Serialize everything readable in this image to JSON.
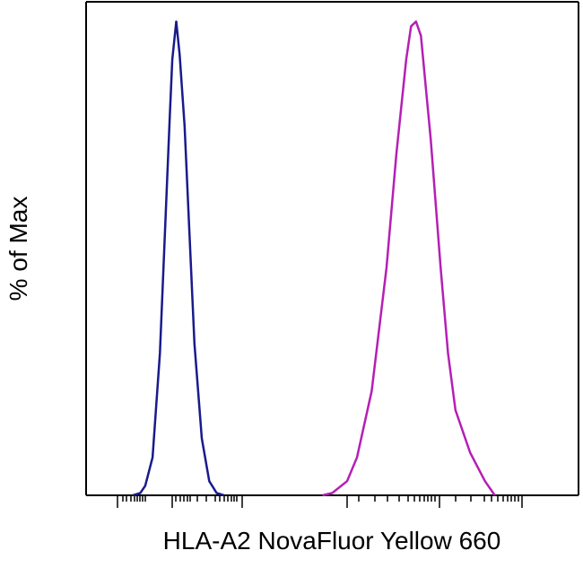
{
  "chart_data": {
    "type": "line",
    "title": "",
    "xlabel": "HLA-A2 NovaFluor Yellow 660",
    "ylabel": "% of Max",
    "xscale": "log",
    "x_tick_labels": [],
    "y_tick_labels": [],
    "xlim": [
      0,
      100
    ],
    "ylim": [
      0,
      100
    ],
    "grid": false,
    "legend": "none",
    "series": [
      {
        "color": "#1a1a8c",
        "x": [
          9.5,
          11,
          12,
          13.5,
          15,
          16,
          17,
          17.5,
          18.3,
          19,
          20,
          21,
          22,
          23.5,
          25,
          26.5,
          28
        ],
        "y": [
          0,
          0.5,
          2,
          8,
          30,
          55,
          80,
          92,
          100,
          93,
          78,
          55,
          32,
          12,
          3,
          0.5,
          0
        ]
      },
      {
        "color": "#b51fb5",
        "x": [
          48,
          50,
          53,
          55,
          58,
          61,
          63,
          65,
          66,
          67,
          68,
          70,
          72,
          73.5,
          75,
          78,
          81,
          83
        ],
        "y": [
          0,
          0.5,
          3,
          8,
          22,
          48,
          72,
          92,
          99,
          100,
          97,
          75,
          48,
          30,
          18,
          9,
          3,
          0
        ]
      }
    ]
  }
}
